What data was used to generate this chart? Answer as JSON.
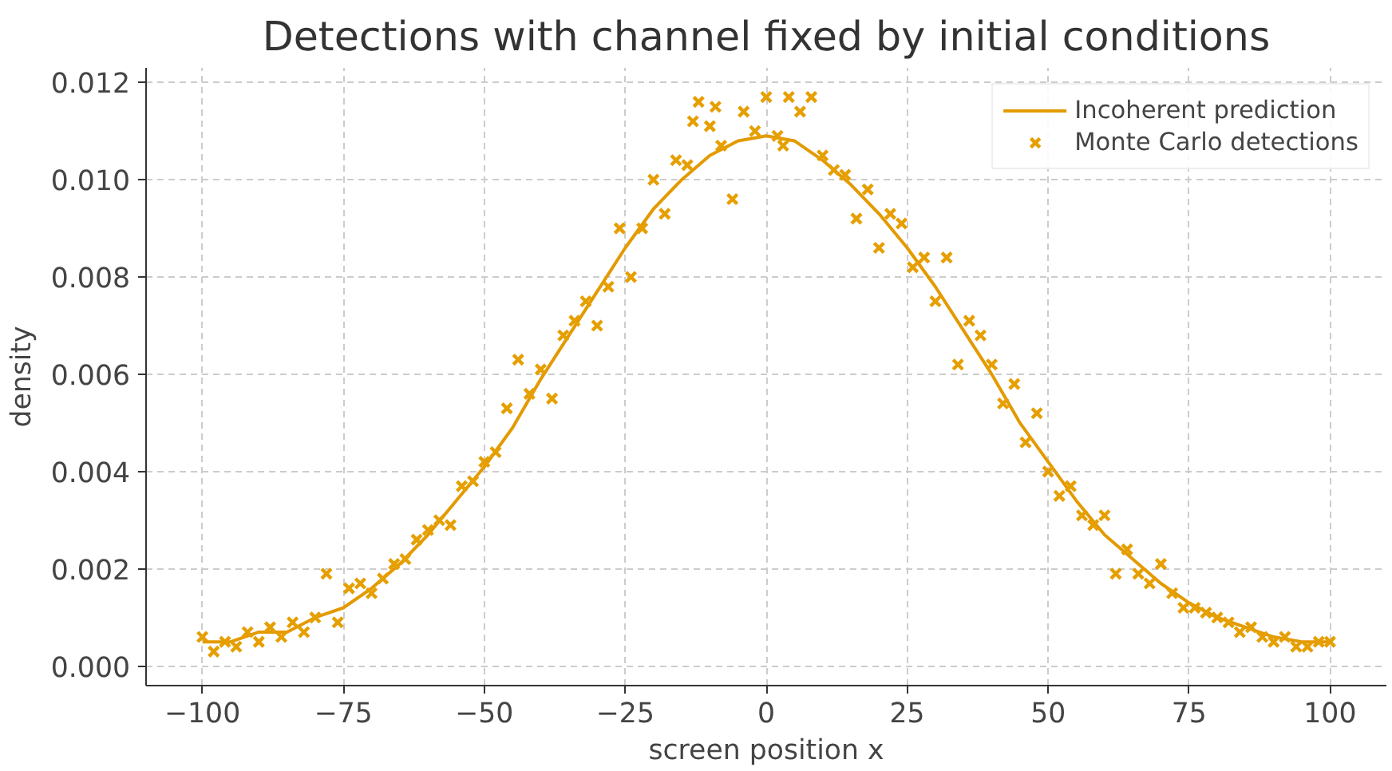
{
  "chart_data": {
    "type": "scatter",
    "title": "Detections with channel fixed by initial conditions",
    "xlabel": "screen position x",
    "ylabel": "density",
    "xlim": [
      -110,
      110
    ],
    "ylim": [
      -0.0004,
      0.0123
    ],
    "xticks": [
      {
        "value": -100,
        "label": "−100"
      },
      {
        "value": -75,
        "label": "−75"
      },
      {
        "value": -50,
        "label": "−50"
      },
      {
        "value": -25,
        "label": "−25"
      },
      {
        "value": 0,
        "label": "0"
      },
      {
        "value": 25,
        "label": "25"
      },
      {
        "value": 50,
        "label": "50"
      },
      {
        "value": 75,
        "label": "75"
      },
      {
        "value": 100,
        "label": "100"
      }
    ],
    "yticks": [
      {
        "value": 0,
        "label": "0.000"
      },
      {
        "value": 0.002,
        "label": "0.002"
      },
      {
        "value": 0.004,
        "label": "0.004"
      },
      {
        "value": 0.006,
        "label": "0.006"
      },
      {
        "value": 0.008,
        "label": "0.008"
      },
      {
        "value": 0.01,
        "label": "0.010"
      },
      {
        "value": 0.012,
        "label": "0.012"
      }
    ],
    "grid": true,
    "legend": "top right",
    "series": [
      {
        "name": "Incoherent prediction",
        "type": "line",
        "color": "#e39a00",
        "line_style": "solid",
        "marker": "none",
        "x": [
          -100,
          -95,
          -90,
          -85,
          -80,
          -75,
          -70,
          -65,
          -60,
          -55,
          -50,
          -45,
          -40,
          -35,
          -30,
          -25,
          -20,
          -15,
          -10,
          -5,
          0,
          5,
          10,
          15,
          20,
          25,
          30,
          35,
          40,
          45,
          50,
          55,
          60,
          65,
          70,
          75,
          80,
          85,
          90,
          95,
          100
        ],
        "values": [
          0.0005,
          0.0005,
          0.0007,
          0.0007,
          0.001,
          0.0012,
          0.0016,
          0.0021,
          0.0027,
          0.0034,
          0.0041,
          0.0049,
          0.0059,
          0.0068,
          0.0077,
          0.0086,
          0.0094,
          0.01,
          0.0105,
          0.0108,
          0.0109,
          0.0108,
          0.0104,
          0.0099,
          0.0093,
          0.0086,
          0.0078,
          0.0069,
          0.006,
          0.005,
          0.0042,
          0.0034,
          0.0027,
          0.0022,
          0.0017,
          0.0013,
          0.001,
          0.0008,
          0.0006,
          0.0005,
          0.0005
        ]
      },
      {
        "name": "Monte Carlo detections",
        "type": "scatter",
        "marker": "cross",
        "color": "#e69f00",
        "x": [
          -100,
          -98,
          -96,
          -94,
          -92,
          -90,
          -88,
          -86,
          -84,
          -82,
          -80,
          -78,
          -76,
          -74,
          -72,
          -70,
          -68,
          -66,
          -64,
          -62,
          -60,
          -58,
          -56,
          -54,
          -52,
          -50,
          -48,
          -46,
          -44,
          -42,
          -40,
          -38,
          -36,
          -34,
          -32,
          -30,
          -28,
          -26,
          -24,
          -22,
          -20,
          -18,
          -16,
          -14,
          -12,
          -10,
          -8,
          -6,
          -4,
          -2,
          0,
          2,
          4,
          6,
          8,
          10,
          12,
          14,
          16,
          18,
          20,
          22,
          24,
          26,
          28,
          30,
          32,
          34,
          36,
          38,
          40,
          42,
          44,
          46,
          48,
          50,
          52,
          54,
          56,
          58,
          60,
          62,
          64,
          66,
          68,
          70,
          72,
          74,
          76,
          78,
          80,
          82,
          84,
          86,
          88,
          90,
          92,
          94,
          96,
          98,
          100,
          -13,
          3,
          -9
        ],
        "values": [
          0.0006,
          0.0003,
          0.0005,
          0.0004,
          0.0007,
          0.0005,
          0.0008,
          0.0006,
          0.0009,
          0.0007,
          0.001,
          0.0019,
          0.0009,
          0.0016,
          0.0017,
          0.0015,
          0.0018,
          0.0021,
          0.0022,
          0.0026,
          0.0028,
          0.003,
          0.0029,
          0.0037,
          0.0038,
          0.0042,
          0.0044,
          0.0053,
          0.0063,
          0.0056,
          0.0061,
          0.0055,
          0.0068,
          0.0071,
          0.0075,
          0.007,
          0.0078,
          0.009,
          0.008,
          0.009,
          0.01,
          0.0093,
          0.0104,
          0.0103,
          0.0116,
          0.0111,
          0.0107,
          0.0096,
          0.0114,
          0.011,
          0.0117,
          0.0109,
          0.0117,
          0.0114,
          0.0117,
          0.0105,
          0.0102,
          0.0101,
          0.0092,
          0.0098,
          0.0086,
          0.0093,
          0.0091,
          0.0082,
          0.0084,
          0.0075,
          0.0084,
          0.0062,
          0.0071,
          0.0068,
          0.0062,
          0.0054,
          0.0058,
          0.0046,
          0.0052,
          0.004,
          0.0035,
          0.0037,
          0.0031,
          0.0029,
          0.0031,
          0.0019,
          0.0024,
          0.0019,
          0.0017,
          0.0021,
          0.0015,
          0.0012,
          0.0012,
          0.0011,
          0.001,
          0.0009,
          0.0007,
          0.0008,
          0.0006,
          0.0005,
          0.0006,
          0.0004,
          0.0004,
          0.0005,
          0.0005,
          0.0112,
          0.0107,
          0.0115
        ]
      }
    ]
  }
}
